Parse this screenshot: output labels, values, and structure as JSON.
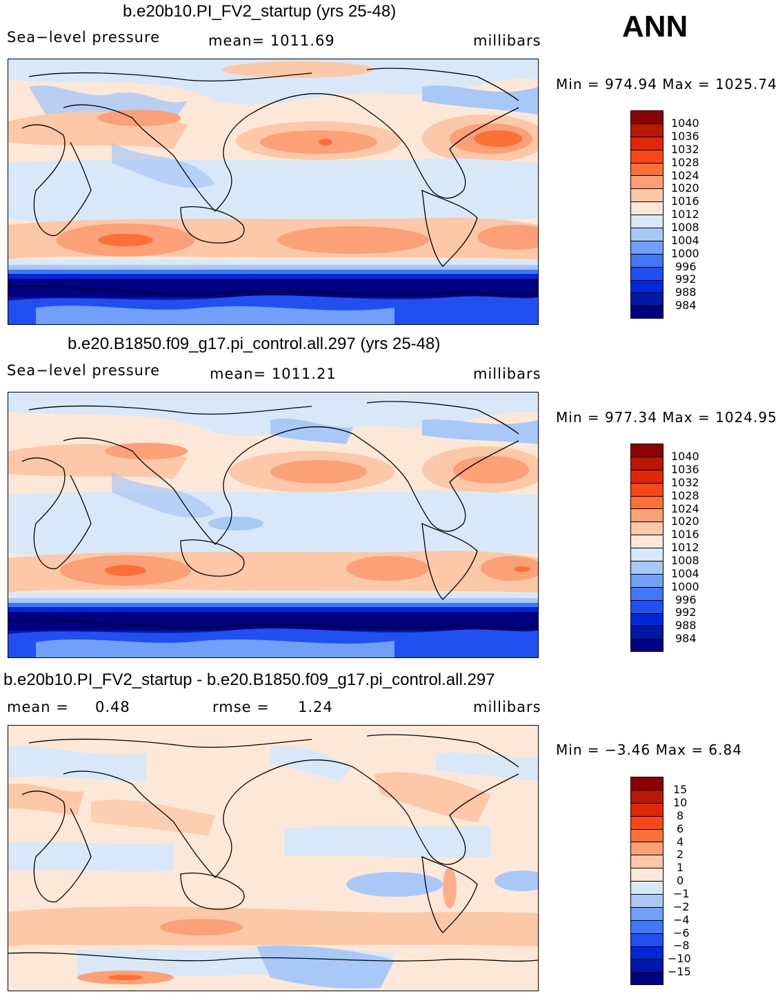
{
  "season": "ANN",
  "colors": {
    "abs": [
      "#000080",
      "#0018a8",
      "#0028d8",
      "#2050f0",
      "#4078f8",
      "#70a0f8",
      "#a8c8f8",
      "#d8e8f8",
      "#fde8d8",
      "#fcc8a8",
      "#fca078",
      "#fc7038",
      "#f84818",
      "#e02808",
      "#b81800",
      "#8c0000"
    ],
    "diff": [
      "#000080",
      "#0018a8",
      "#0028d8",
      "#2050f0",
      "#4078f8",
      "#70a0f8",
      "#a8c8f8",
      "#d8e8f8",
      "#fde8d8",
      "#fcc8a8",
      "#fca078",
      "#fc7038",
      "#f84818",
      "#e02808",
      "#b81800",
      "#8c0000"
    ]
  },
  "panels": [
    {
      "title": "b.e20b10.PI_FV2_startup (yrs 25-48)",
      "left": "Sea−level pressure",
      "mid": "mean=  1011.69",
      "right": "millibars",
      "minmax": "Min  =  974.94  Max  =  1025.74"
    },
    {
      "title": "b.e20.B1850.f09_g17.pi_control.all.297 (yrs 25-48)",
      "left": "Sea−level pressure",
      "mid": "mean=  1011.21",
      "right": "millibars",
      "minmax": "Min  =  977.34  Max  =  1024.95"
    },
    {
      "title": "b.e20b10.PI_FV2_startup - b.e20.B1850.f09_g17.pi_control.all.297",
      "left": "mean  =",
      "leftval": "0.48",
      "mid": "rmse  =",
      "midval": "1.24",
      "right": "millibars",
      "minmax": "Min  =    −3.46  Max  =      6.84"
    }
  ],
  "chart_data": [
    {
      "type": "heatmap",
      "title": "b.e20b10.PI_FV2_startup (yrs 25-48)",
      "variable": "Sea-level pressure",
      "units": "millibars",
      "mean": 1011.69,
      "min": 974.94,
      "max": 1025.74,
      "colorbar_levels": [
        "1040",
        "1036",
        "1032",
        "1028",
        "1024",
        "1020",
        "1016",
        "1012",
        "1008",
        "1004",
        "1000",
        "996",
        "992",
        "988",
        "984"
      ]
    },
    {
      "type": "heatmap",
      "title": "b.e20.B1850.f09_g17.pi_control.all.297 (yrs 25-48)",
      "variable": "Sea-level pressure",
      "units": "millibars",
      "mean": 1011.21,
      "min": 977.34,
      "max": 1024.95,
      "colorbar_levels": [
        "1040",
        "1036",
        "1032",
        "1028",
        "1024",
        "1020",
        "1016",
        "1012",
        "1008",
        "1004",
        "1000",
        "996",
        "992",
        "988",
        "984"
      ]
    },
    {
      "type": "heatmap",
      "title": "b.e20b10.PI_FV2_startup - b.e20.B1850.f09_g17.pi_control.all.297",
      "units": "millibars",
      "mean": 0.48,
      "rmse": 1.24,
      "min": -3.46,
      "max": 6.84,
      "colorbar_levels": [
        "15",
        "10",
        "8",
        "6",
        "4",
        "2",
        "1",
        "0",
        "−1",
        "−2",
        "−4",
        "−6",
        "−8",
        "−10",
        "−15"
      ]
    }
  ]
}
